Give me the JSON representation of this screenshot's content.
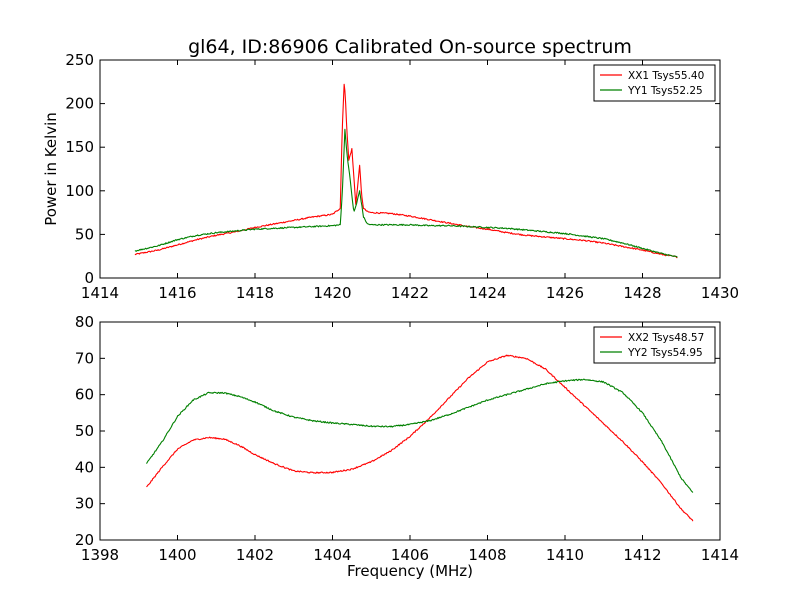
{
  "chart_data": [
    {
      "type": "line",
      "title": "gl64, ID:86906 Calibrated On-source spectrum",
      "xlabel": "",
      "ylabel": "Power in Kelvin",
      "xlim": [
        1414,
        1430
      ],
      "ylim": [
        0,
        250
      ],
      "xticks": [
        1414,
        1416,
        1418,
        1420,
        1422,
        1424,
        1426,
        1428,
        1430
      ],
      "yticks": [
        0,
        50,
        100,
        150,
        200,
        250
      ],
      "legend_position": "top-right",
      "grid": false,
      "series": [
        {
          "name": "XX1 Tsys55.40",
          "color": "#ff0000",
          "x": [
            1414.9,
            1415.5,
            1416.0,
            1416.5,
            1417.0,
            1417.5,
            1418.0,
            1418.5,
            1419.0,
            1419.5,
            1420.0,
            1420.2,
            1420.25,
            1420.3,
            1420.33,
            1420.37,
            1420.42,
            1420.5,
            1420.6,
            1420.65,
            1420.7,
            1420.75,
            1420.8,
            1420.9,
            1421.0,
            1421.5,
            1422.0,
            1422.5,
            1423.0,
            1423.5,
            1424.0,
            1424.5,
            1425.0,
            1425.5,
            1426.0,
            1426.5,
            1427.0,
            1427.5,
            1428.0,
            1428.5,
            1428.9
          ],
          "y": [
            27,
            32,
            38,
            44,
            49,
            53,
            58,
            62,
            66,
            70,
            73,
            80,
            170,
            222,
            210,
            170,
            135,
            148,
            85,
            105,
            130,
            95,
            80,
            76,
            75,
            74,
            71,
            67,
            63,
            59,
            56,
            52,
            49,
            47,
            45,
            43,
            40,
            36,
            32,
            27,
            24
          ]
        },
        {
          "name": "YY1 Tsys52.25",
          "color": "#008000",
          "x": [
            1414.9,
            1415.5,
            1416.0,
            1416.5,
            1417.0,
            1417.5,
            1418.0,
            1418.5,
            1419.0,
            1419.5,
            1420.0,
            1420.2,
            1420.25,
            1420.32,
            1420.38,
            1420.45,
            1420.55,
            1420.62,
            1420.7,
            1420.8,
            1420.9,
            1421.0,
            1421.5,
            1422.0,
            1422.5,
            1423.0,
            1423.5,
            1424.0,
            1424.5,
            1425.0,
            1425.5,
            1426.0,
            1426.5,
            1427.0,
            1427.5,
            1428.0,
            1428.5,
            1428.9
          ],
          "y": [
            31,
            37,
            44,
            49,
            52,
            54,
            56,
            57,
            58,
            59,
            60,
            61,
            95,
            170,
            140,
            115,
            75,
            85,
            100,
            70,
            62,
            61,
            61,
            61,
            60,
            60,
            59,
            58,
            57,
            55,
            53,
            51,
            48,
            45,
            40,
            34,
            28,
            24
          ]
        }
      ]
    },
    {
      "type": "line",
      "title": "",
      "xlabel": "Frequency (MHz)",
      "ylabel": "",
      "xlim": [
        1398,
        1414
      ],
      "ylim": [
        20,
        80
      ],
      "xticks": [
        1398,
        1400,
        1402,
        1404,
        1406,
        1408,
        1410,
        1412,
        1414
      ],
      "yticks": [
        20,
        30,
        40,
        50,
        60,
        70,
        80
      ],
      "legend_position": "top-right",
      "grid": false,
      "series": [
        {
          "name": "XX2 Tsys48.57",
          "color": "#ff0000",
          "x": [
            1399.2,
            1399.6,
            1400.0,
            1400.4,
            1400.8,
            1401.2,
            1401.6,
            1402.0,
            1402.5,
            1403.0,
            1403.5,
            1404.0,
            1404.5,
            1405.0,
            1405.5,
            1406.0,
            1406.5,
            1407.0,
            1407.5,
            1408.0,
            1408.5,
            1409.0,
            1409.5,
            1410.0,
            1410.5,
            1411.0,
            1411.5,
            1412.0,
            1412.5,
            1413.0,
            1413.3
          ],
          "y": [
            34.5,
            40,
            45,
            47.5,
            48.2,
            47.8,
            46,
            43.5,
            41,
            39,
            38.5,
            38.6,
            39.5,
            41.5,
            44.5,
            48.5,
            53.5,
            59,
            64.5,
            69,
            70.8,
            70,
            67,
            62,
            57,
            52,
            47,
            41.5,
            35.5,
            28.5,
            25.3
          ]
        },
        {
          "name": "YY2 Tsys54.95",
          "color": "#008000",
          "x": [
            1399.2,
            1399.6,
            1400.0,
            1400.4,
            1400.8,
            1401.2,
            1401.6,
            1402.0,
            1402.5,
            1403.0,
            1403.5,
            1404.0,
            1404.5,
            1405.0,
            1405.5,
            1406.0,
            1406.5,
            1407.0,
            1407.5,
            1408.0,
            1408.5,
            1409.0,
            1409.5,
            1410.0,
            1410.5,
            1411.0,
            1411.5,
            1412.0,
            1412.5,
            1413.0,
            1413.3
          ],
          "y": [
            41,
            47,
            54,
            58.5,
            60.5,
            60.5,
            59.5,
            58,
            55.5,
            53.8,
            52.8,
            52.2,
            51.8,
            51.3,
            51.2,
            51.8,
            52.8,
            54.5,
            56.5,
            58.5,
            60,
            61.5,
            63,
            63.8,
            64.2,
            63.5,
            60.5,
            55,
            47,
            37,
            33
          ]
        }
      ]
    }
  ]
}
